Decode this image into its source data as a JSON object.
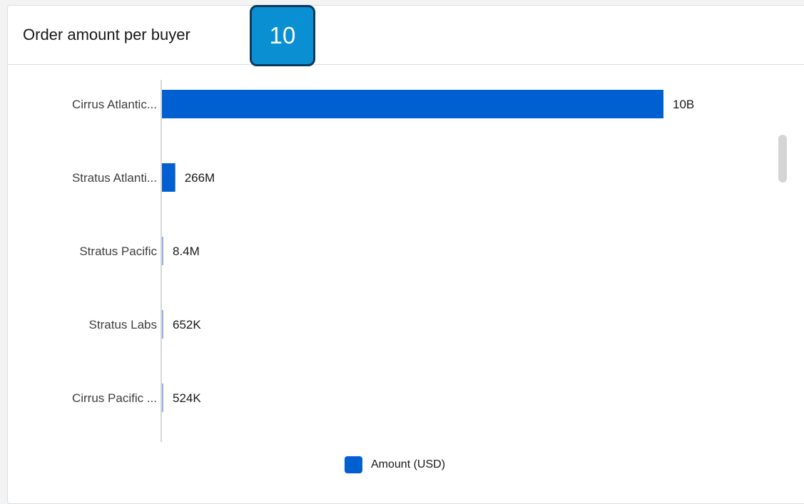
{
  "header": {
    "title": "Order amount per buyer"
  },
  "badge": {
    "value": "10"
  },
  "legend": {
    "label": "Amount (USD)",
    "color": "#0060d1"
  },
  "colors": {
    "bar": "#0060d1",
    "thin_bar": "#8fb3e8",
    "axis": "#c9c9c9"
  },
  "chart_data": {
    "type": "bar",
    "orientation": "horizontal",
    "categories": [
      "Cirrus Atlantic...",
      "Stratus Atlanti...",
      "Stratus Pacific",
      "Stratus Labs",
      "Cirrus Pacific ..."
    ],
    "values": [
      10000000000,
      266000000,
      8400000,
      652000,
      524000
    ],
    "value_labels": [
      "10B",
      "266M",
      "8.4M",
      "652K",
      "524K"
    ],
    "series": [
      {
        "name": "Amount (USD)",
        "values": [
          10000000000,
          266000000,
          8400000,
          652000,
          524000
        ]
      }
    ],
    "xlim": [
      0,
      10000000000
    ],
    "legend_position": "bottom",
    "grid": false
  }
}
